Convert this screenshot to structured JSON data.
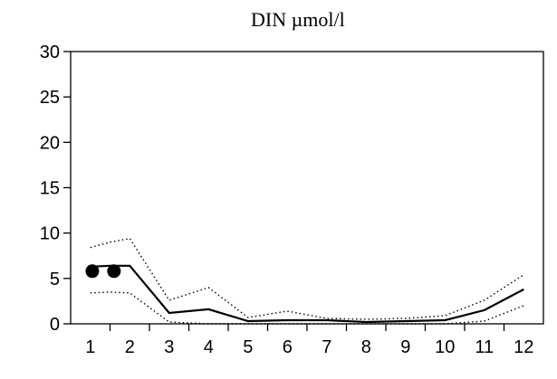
{
  "chart_data": {
    "type": "line",
    "title": "DIN    µmol/l",
    "xlabel": "",
    "ylabel": "",
    "x": [
      1,
      2,
      3,
      4,
      5,
      6,
      7,
      8,
      9,
      10,
      11,
      12
    ],
    "x_tick_labels": [
      "1",
      "2",
      "3",
      "4",
      "5",
      "6",
      "7",
      "8",
      "9",
      "10",
      "11",
      "12"
    ],
    "y_ticks": [
      0,
      5,
      10,
      15,
      20,
      25,
      30
    ],
    "xlim": [
      0.5,
      12.5
    ],
    "ylim": [
      0,
      30
    ],
    "grid": false,
    "legend": "none",
    "series": [
      {
        "role": "mean",
        "style": "solid",
        "x": [
          1,
          1.5,
          2,
          3,
          4,
          5,
          6,
          7,
          8,
          9,
          10,
          11,
          12
        ],
        "values": [
          6.3,
          6.4,
          6.4,
          1.2,
          1.6,
          0.3,
          0.4,
          0.4,
          0.2,
          0.3,
          0.4,
          1.5,
          3.8
        ]
      },
      {
        "role": "upper",
        "style": "dotted",
        "x": [
          1,
          1.5,
          2,
          3,
          4,
          5,
          6,
          7,
          8,
          9,
          10,
          11,
          12
        ],
        "values": [
          8.4,
          9.0,
          9.4,
          2.6,
          4.0,
          0.7,
          1.4,
          0.6,
          0.5,
          0.6,
          0.9,
          2.6,
          5.4
        ]
      },
      {
        "role": "lower",
        "style": "dotted",
        "x": [
          1,
          1.5,
          2,
          3,
          4,
          5,
          6,
          7,
          8,
          9,
          10,
          11,
          12
        ],
        "values": [
          3.4,
          3.5,
          3.4,
          0.2,
          0.0,
          0.0,
          0.0,
          0.0,
          0.0,
          0.0,
          0.0,
          0.3,
          2.0
        ]
      },
      {
        "role": "observations",
        "style": "markers",
        "x": [
          1.05,
          1.6
        ],
        "values": [
          5.8,
          5.8
        ]
      }
    ],
    "colors": {
      "line": "#000000",
      "background": "#ffffff"
    }
  }
}
